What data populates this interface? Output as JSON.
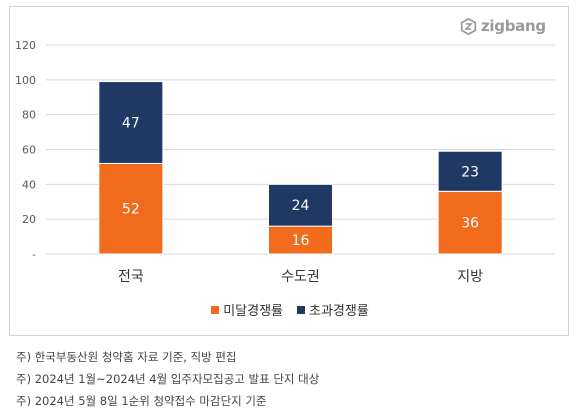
{
  "brand": {
    "logo_text": "zigbang",
    "logo_icon": "zigbang-logo-icon"
  },
  "colors": {
    "series1": "#f26b1d",
    "series2": "#203864",
    "grid": "#d9d9d9",
    "axis_text": "#595959"
  },
  "chart_data": {
    "type": "bar",
    "stacked": true,
    "categories": [
      "전국",
      "수도권",
      "지방"
    ],
    "series": [
      {
        "name": "미달경쟁률",
        "values": [
          52,
          16,
          36
        ]
      },
      {
        "name": "초과경쟁률",
        "values": [
          47,
          24,
          23
        ]
      }
    ],
    "ylim": [
      0,
      120
    ],
    "yticks": [
      0,
      20,
      40,
      60,
      80,
      100,
      120
    ],
    "ytick_labels": [
      "-",
      "20",
      "40",
      "60",
      "80",
      "100",
      "120"
    ],
    "grid": true,
    "legend_position": "bottom"
  },
  "footnotes": [
    "주) 한국부동산원 청약홈 자료 기준, 직방 편집",
    "주) 2024년 1월~2024년 4월 입주자모집공고 발표 단지 대상",
    "주) 2024년 5월 8일 1순위 청약접수 마감단지 기준"
  ]
}
